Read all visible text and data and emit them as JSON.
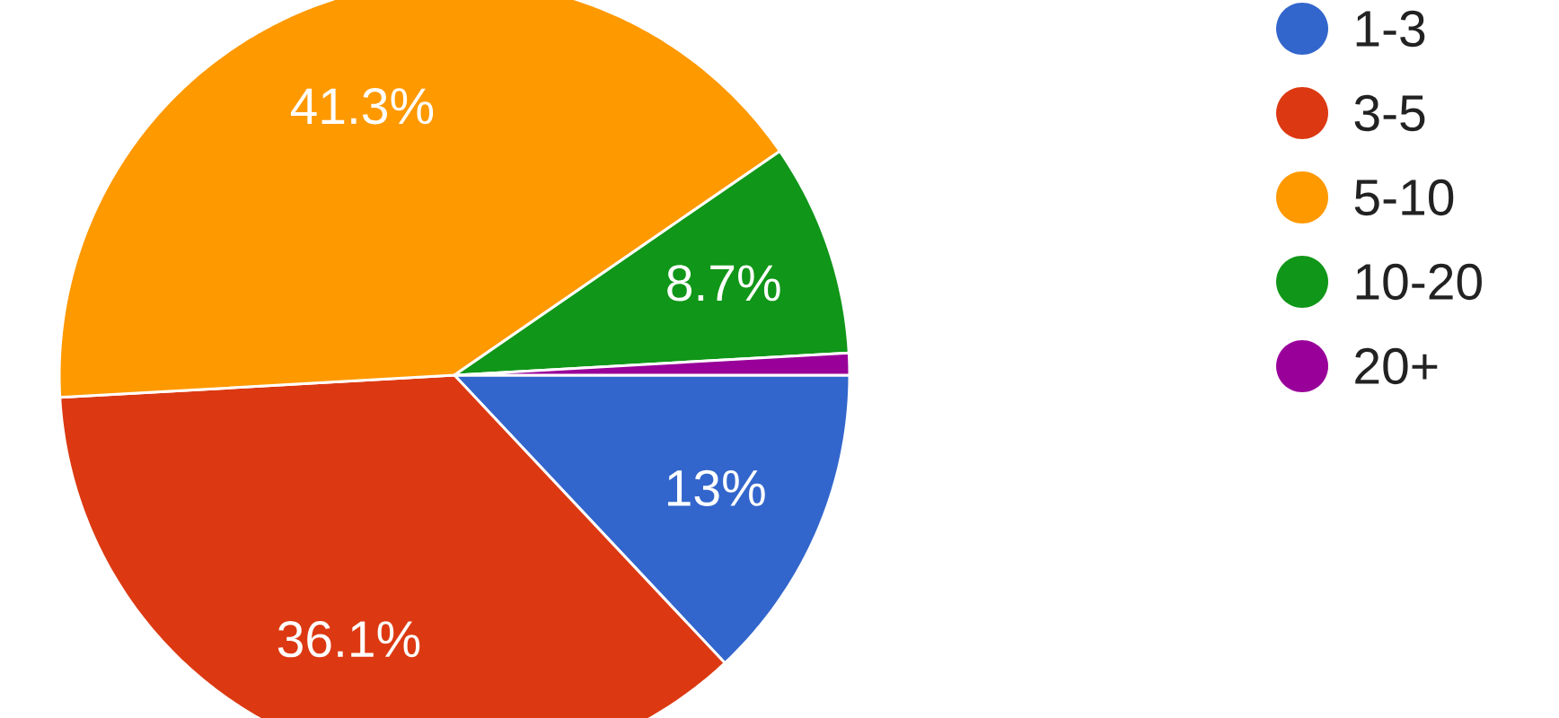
{
  "chart_data": {
    "type": "pie",
    "categories": [
      "1-3",
      "3-5",
      "5-10",
      "10-20",
      "20+"
    ],
    "values": [
      13,
      36.1,
      41.3,
      8.7,
      0.9
    ],
    "colors": [
      "#3366cc",
      "#dc3912",
      "#ff9900",
      "#109618",
      "#990099"
    ],
    "value_labels": [
      "13%",
      "36.1%",
      "41.3%",
      "8.7%",
      null
    ],
    "legend": "right"
  }
}
